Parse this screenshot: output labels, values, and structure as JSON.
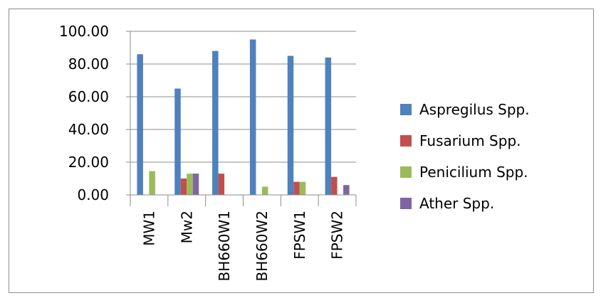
{
  "chart_data": {
    "type": "bar",
    "title": "",
    "xlabel": "",
    "ylabel": "",
    "categories": [
      "MW1",
      "Mw2",
      "BH660W1",
      "BH660W2",
      "FPSW1",
      "FPSW2"
    ],
    "ylim": [
      0,
      100
    ],
    "yticks": [
      "0.00",
      "20.00",
      "40.00",
      "60.00",
      "80.00",
      "100.00"
    ],
    "grid": true,
    "legend_position": "right",
    "series": [
      {
        "name": "Aspregilus Spp.",
        "color": "#4f81bd",
        "values": [
          86,
          65,
          88,
          95,
          85,
          84
        ]
      },
      {
        "name": "Fusarium Spp.",
        "color": "#c0504d",
        "values": [
          0,
          10,
          13,
          0,
          8,
          11
        ]
      },
      {
        "name": "Penicilium Spp.",
        "color": "#9bbb59",
        "values": [
          14.5,
          13,
          0,
          5,
          8,
          0
        ]
      },
      {
        "name": "Ather Spp.",
        "color": "#8064a2",
        "values": [
          0,
          13,
          0,
          0,
          0,
          6
        ]
      }
    ]
  }
}
